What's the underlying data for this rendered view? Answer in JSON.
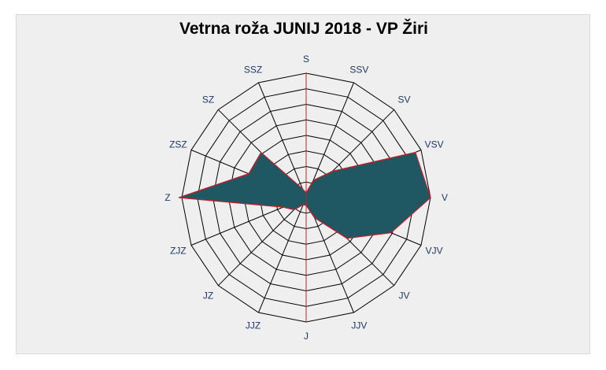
{
  "chart_data": {
    "type": "radar",
    "title": "Vetrna roža JUNIJ 2018 - VP Žiri",
    "directions": [
      "S",
      "SSV",
      "SV",
      "VSV",
      "V",
      "VJV",
      "JV",
      "JJV",
      "J",
      "JJZ",
      "JZ",
      "ZJZ",
      "Z",
      "ZSZ",
      "SZ",
      "SSZ"
    ],
    "rings": 8,
    "max": 8,
    "series": [
      {
        "values": [
          0.3,
          1.2,
          2.4,
          7.6,
          8.0,
          5.9,
          3.7,
          1.4,
          0.5,
          0.5,
          1.1,
          1.6,
          8.2,
          4.0,
          4.1,
          0.6
        ]
      }
    ],
    "fill_color": "#1f5763",
    "stroke_color": "#c0202a",
    "grid": true
  }
}
